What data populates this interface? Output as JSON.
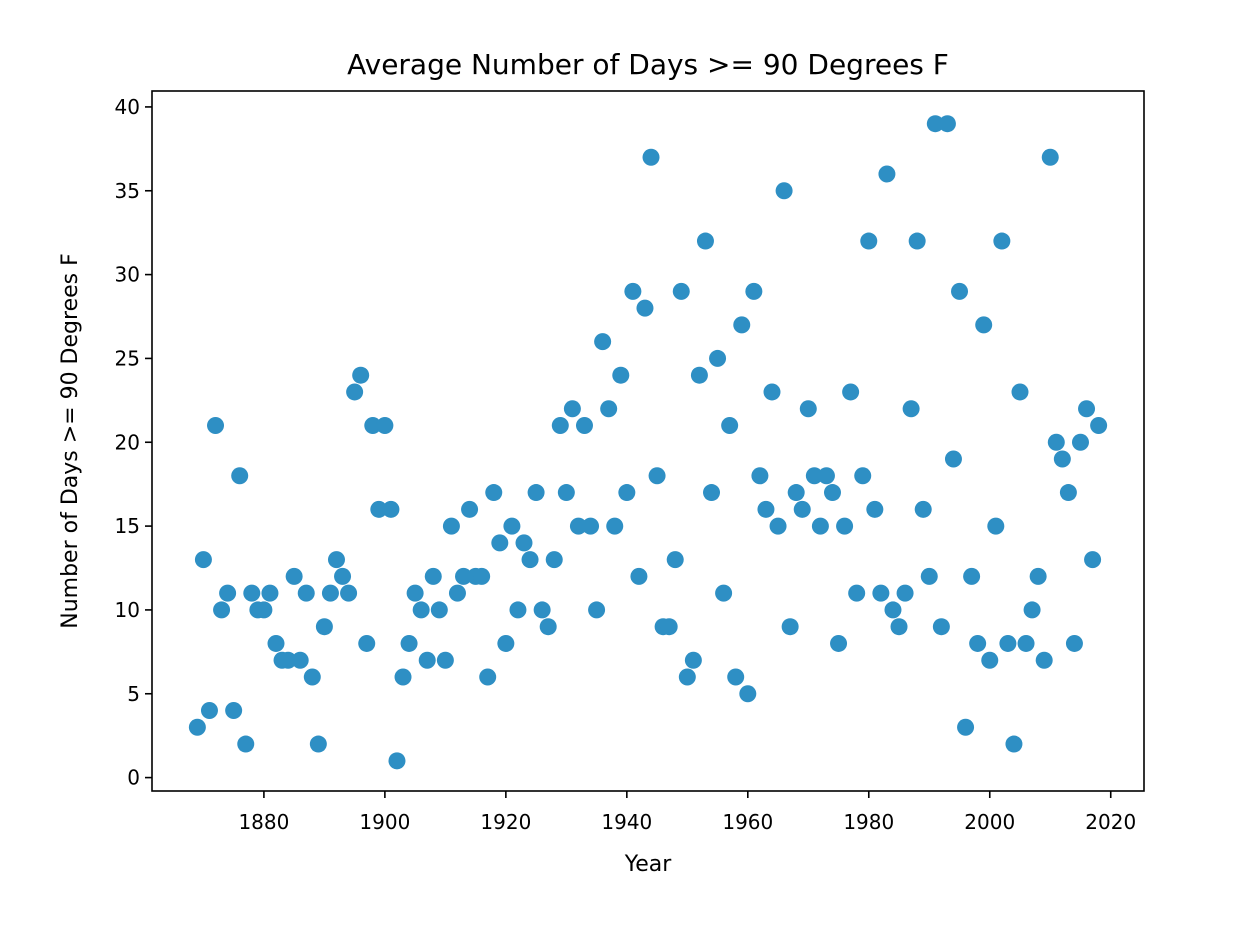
{
  "chart_data": {
    "type": "scatter",
    "title": "Average Number of Days >= 90 Degrees F",
    "xlabel": "Year",
    "ylabel": "Number of Days >= 90 Degrees F",
    "xlim": [
      1861.5,
      2025.5
    ],
    "ylim": [
      -0.8,
      40.95
    ],
    "xticks": [
      1880,
      1900,
      1920,
      1940,
      1960,
      1980,
      2000,
      2020
    ],
    "yticks": [
      0,
      5,
      10,
      15,
      20,
      25,
      30,
      35,
      40
    ],
    "grid": false,
    "legend": "none",
    "colors": {
      "marker": "#2e8fc4"
    },
    "series": [
      {
        "x": [
          1869,
          1870,
          1871,
          1872,
          1873,
          1874,
          1875,
          1876,
          1877,
          1878,
          1879,
          1880,
          1881,
          1882,
          1883,
          1884,
          1885,
          1886,
          1887,
          1888,
          1889,
          1890,
          1891,
          1892,
          1893,
          1894,
          1895,
          1896,
          1897,
          1898,
          1899,
          1900,
          1901,
          1902,
          1903,
          1904,
          1905,
          1906,
          1907,
          1908,
          1909,
          1910,
          1911,
          1912,
          1913,
          1914,
          1915,
          1916,
          1917,
          1918,
          1919,
          1920,
          1921,
          1922,
          1923,
          1924,
          1925,
          1926,
          1927,
          1928,
          1929,
          1930,
          1931,
          1932,
          1933,
          1934,
          1935,
          1936,
          1937,
          1938,
          1939,
          1940,
          1941,
          1942,
          1943,
          1944,
          1945,
          1946,
          1947,
          1948,
          1949,
          1950,
          1951,
          1952,
          1953,
          1954,
          1955,
          1956,
          1957,
          1958,
          1959,
          1960,
          1961,
          1962,
          1963,
          1964,
          1965,
          1966,
          1967,
          1968,
          1969,
          1970,
          1971,
          1972,
          1973,
          1974,
          1975,
          1976,
          1977,
          1978,
          1979,
          1980,
          1981,
          1982,
          1983,
          1984,
          1985,
          1986,
          1987,
          1988,
          1989,
          1990,
          1991,
          1992,
          1993,
          1994,
          1995,
          1996,
          1997,
          1998,
          1999,
          2000,
          2001,
          2002,
          2003,
          2004,
          2005,
          2006,
          2007,
          2008,
          2009,
          2010,
          2011,
          2012,
          2013,
          2014,
          2015,
          2016,
          2017,
          2018
        ],
        "y": [
          3,
          13,
          4,
          21,
          10,
          11,
          4,
          18,
          2,
          11,
          10,
          10,
          11,
          8,
          7,
          7,
          12,
          7,
          11,
          6,
          2,
          9,
          11,
          13,
          12,
          11,
          23,
          24,
          8,
          21,
          16,
          21,
          16,
          1,
          6,
          8,
          11,
          10,
          7,
          12,
          10,
          7,
          15,
          11,
          12,
          16,
          12,
          12,
          6,
          17,
          14,
          8,
          15,
          10,
          14,
          13,
          17,
          10,
          9,
          13,
          21,
          17,
          22,
          15,
          21,
          15,
          10,
          26,
          22,
          15,
          24,
          17,
          29,
          12,
          28,
          37,
          18,
          9,
          9,
          13,
          29,
          6,
          7,
          24,
          32,
          17,
          25,
          11,
          21,
          6,
          27,
          5,
          29,
          18,
          16,
          23,
          15,
          35,
          9,
          17,
          16,
          22,
          18,
          15,
          18,
          17,
          8,
          15,
          23,
          11,
          18,
          32,
          16,
          11,
          36,
          10,
          9,
          11,
          22,
          32,
          16,
          12,
          39,
          9,
          39,
          19,
          29,
          3,
          12,
          8,
          27,
          7,
          15,
          32,
          8,
          2,
          23,
          8,
          10,
          12,
          7,
          37,
          20,
          19,
          17,
          8,
          20,
          22,
          13,
          21
        ]
      }
    ]
  }
}
